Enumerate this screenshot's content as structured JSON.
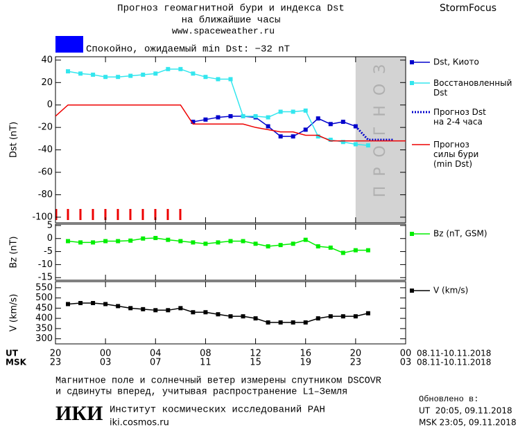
{
  "header": {
    "title_line1": "Прогноз геомагнитной бури и индекса Dst",
    "title_line2": "на ближайшие часы",
    "url": "www.spaceweather.ru",
    "brand": "StormFocus",
    "status": "Спокойно, ожидаемый min Dst: −32 nT",
    "status_color": "#0000ff"
  },
  "time_axis": {
    "xlim": [
      0,
      28
    ],
    "ut_label": "UT",
    "msk_label": "MSK",
    "ut_ticks": [
      {
        "value": 0,
        "label": "20"
      },
      {
        "value": 4,
        "label": "00"
      },
      {
        "value": 8,
        "label": "04"
      },
      {
        "value": 12,
        "label": "08"
      },
      {
        "value": 16,
        "label": "12"
      },
      {
        "value": 20,
        "label": "16"
      },
      {
        "value": 24,
        "label": "20"
      },
      {
        "value": 28,
        "label": "00"
      }
    ],
    "msk_ticks": [
      {
        "value": 0,
        "label": "23"
      },
      {
        "value": 4,
        "label": "03"
      },
      {
        "value": 8,
        "label": "07"
      },
      {
        "value": 12,
        "label": "11"
      },
      {
        "value": 16,
        "label": "15"
      },
      {
        "value": 20,
        "label": "19"
      },
      {
        "value": 24,
        "label": "23"
      },
      {
        "value": 28,
        "label": "03"
      }
    ],
    "ut_dates": "08.11-10.11.2018",
    "msk_dates": "08.11-10.11.2018"
  },
  "chart_data": [
    {
      "type": "line",
      "y_label": "Dst (nT)",
      "ylim": [
        -105,
        43
      ],
      "yticks": [
        40,
        20,
        0,
        -20,
        -40,
        -60,
        -80,
        -100
      ],
      "forecast_start": 24,
      "forecast_label": "ПРОГНОЗ",
      "series": [
        {
          "name": "Dst, Киото",
          "color": "#0000cc",
          "marker": true,
          "dashed": false,
          "x": [
            11,
            12,
            13,
            14,
            15,
            16,
            17,
            18,
            19,
            20,
            21,
            22,
            23,
            24
          ],
          "values": [
            -15,
            -13,
            -11,
            -10,
            -10,
            -11,
            -19,
            -28,
            -28,
            -22,
            -12,
            -17,
            -15,
            -19
          ]
        },
        {
          "name": "Восстановленный\nDst",
          "color": "#33e6ee",
          "marker": true,
          "dashed": false,
          "x": [
            1,
            2,
            3,
            4,
            5,
            6,
            7,
            8,
            9,
            10,
            11,
            12,
            13,
            14,
            15,
            16,
            17,
            18,
            19,
            20,
            21,
            22,
            23,
            24,
            25
          ],
          "values": [
            30,
            28,
            27,
            25,
            25,
            26,
            27,
            28,
            32,
            32,
            28,
            25,
            23,
            23,
            -10,
            -10,
            -11,
            -6,
            -6,
            -5,
            -28,
            -31,
            -33,
            -35,
            -36
          ]
        },
        {
          "name": "Прогноз Dst\nна 2-4 часа",
          "color": "#0000cc",
          "marker": false,
          "dashed": true,
          "x": [
            24,
            25,
            26,
            27
          ],
          "values": [
            -19,
            -31,
            -31,
            -31
          ]
        },
        {
          "name": "Прогноз\nсилы бури\n(min Dst)",
          "color": "#ee0000",
          "marker": false,
          "dashed": false,
          "x": [
            0,
            1,
            2,
            3,
            4,
            5,
            6,
            7,
            8,
            9,
            10,
            11,
            12,
            13,
            14,
            15,
            16,
            17,
            18,
            19,
            20,
            21,
            22,
            23,
            24,
            25,
            26,
            27,
            28
          ],
          "values": [
            -10,
            0,
            0,
            0,
            0,
            0,
            0,
            0,
            0,
            0,
            0,
            -17,
            -17,
            -17,
            -17,
            -17,
            -20,
            -22,
            -24,
            -24,
            -27,
            -27,
            -32,
            -32,
            -32,
            -32,
            -32,
            -32,
            -32
          ]
        }
      ]
    },
    {
      "type": "line",
      "y_label": "Bz (nT)",
      "ylim": [
        -16,
        5.5
      ],
      "yticks": [
        5,
        0,
        -5,
        -10,
        -15
      ],
      "series": [
        {
          "name": "Bz (nT, GSM)",
          "color": "#00ee00",
          "marker": true,
          "dashed": false,
          "x": [
            1,
            2,
            3,
            4,
            5,
            6,
            7,
            8,
            9,
            10,
            11,
            12,
            13,
            14,
            15,
            16,
            17,
            18,
            19,
            20,
            21,
            22,
            23,
            24,
            25
          ],
          "values": [
            -1,
            -1.5,
            -1.5,
            -1,
            -1,
            -0.8,
            0,
            0.2,
            -0.5,
            -1,
            -1.5,
            -2,
            -1.5,
            -1,
            -1,
            -2,
            -3,
            -2.5,
            -2,
            -0.5,
            -3,
            -3.5,
            -5.5,
            -4.5,
            -4.5
          ]
        }
      ]
    },
    {
      "type": "line",
      "y_label": "V (km/s)",
      "ylim": [
        275,
        580
      ],
      "yticks": [
        550,
        500,
        450,
        400,
        350,
        300
      ],
      "series": [
        {
          "name": "V (km/s)",
          "color": "#000000",
          "marker": true,
          "dashed": false,
          "x": [
            1,
            2,
            3,
            4,
            5,
            6,
            7,
            8,
            9,
            10,
            11,
            12,
            13,
            14,
            15,
            16,
            17,
            18,
            19,
            20,
            21,
            22,
            23,
            24,
            25
          ],
          "values": [
            470,
            475,
            475,
            470,
            460,
            450,
            445,
            440,
            440,
            450,
            430,
            430,
            420,
            410,
            410,
            400,
            380,
            380,
            380,
            380,
            400,
            410,
            410,
            410,
            425
          ]
        }
      ]
    }
  ],
  "footer": {
    "note_line1": "Магнитное поле и солнечный ветер измерены спутником DSCOVR",
    "note_line2": "и сдвинуты вперед, учитывая распространение L1–Земля",
    "logo": "ИКИ",
    "institute": "Институт космических исследований РАН",
    "institute_url": "iki.cosmos.ru",
    "updated_label": "Обновлено в:",
    "updated_ut": "UT  20:05, 09.11.2018",
    "updated_msk": "MSK 23:05, 09.11.2018"
  }
}
